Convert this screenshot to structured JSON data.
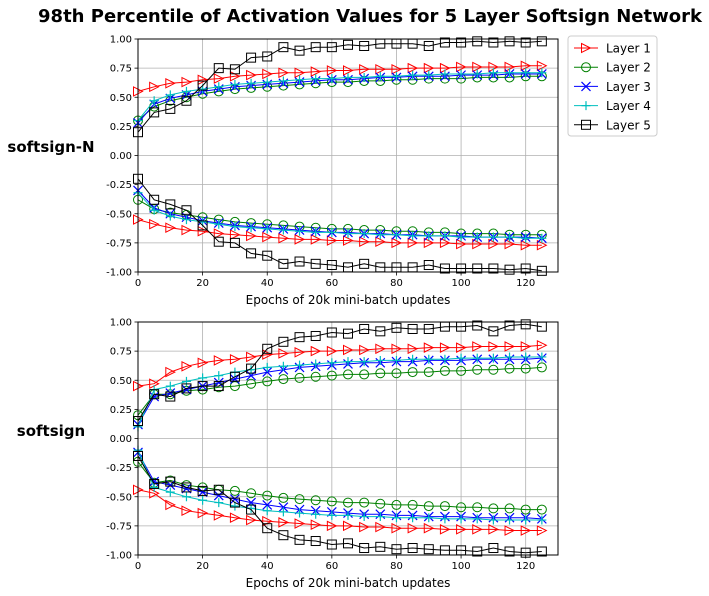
{
  "title": "98th Percentile of Activation Values for 5 Layer Softsign Network",
  "legend": {
    "placement": "outside-top-right",
    "entries": [
      {
        "label": "Layer 1",
        "color": "#ff0000",
        "marker": "triangle-right"
      },
      {
        "label": "Layer 2",
        "color": "#008000",
        "marker": "circle"
      },
      {
        "label": "Layer 3",
        "color": "#0000ff",
        "marker": "x"
      },
      {
        "label": "Layer 4",
        "color": "#00bfbf",
        "marker": "plus"
      },
      {
        "label": "Layer 5",
        "color": "#000000",
        "marker": "square"
      }
    ]
  },
  "chart_data": [
    {
      "type": "line",
      "row_label": "softsign-N",
      "xlabel": "Epochs of 20k mini-batch updates",
      "ylabel": "",
      "xlim": [
        0,
        130
      ],
      "ylim": [
        -1.0,
        1.0
      ],
      "xticks": [
        "0",
        "20",
        "40",
        "60",
        "80",
        "100",
        "120"
      ],
      "yticks": [
        "-1.00",
        "-0.75",
        "-0.50",
        "-0.25",
        "0.00",
        "0.25",
        "0.50",
        "0.75",
        "1.00"
      ],
      "grid": true,
      "x": [
        0,
        5,
        10,
        15,
        20,
        25,
        30,
        35,
        40,
        45,
        50,
        55,
        60,
        65,
        70,
        75,
        80,
        85,
        90,
        95,
        100,
        105,
        110,
        115,
        120,
        125
      ],
      "series": [
        {
          "name": "Layer 1",
          "group": "upper",
          "values": [
            0.55,
            0.59,
            0.62,
            0.63,
            0.65,
            0.66,
            0.68,
            0.69,
            0.7,
            0.71,
            0.71,
            0.72,
            0.73,
            0.73,
            0.74,
            0.74,
            0.74,
            0.75,
            0.75,
            0.75,
            0.76,
            0.76,
            0.76,
            0.76,
            0.77,
            0.77
          ]
        },
        {
          "name": "Layer 2",
          "group": "upper",
          "values": [
            0.3,
            0.42,
            0.47,
            0.5,
            0.53,
            0.55,
            0.57,
            0.58,
            0.59,
            0.6,
            0.61,
            0.62,
            0.63,
            0.63,
            0.64,
            0.64,
            0.65,
            0.65,
            0.66,
            0.66,
            0.66,
            0.67,
            0.67,
            0.67,
            0.68,
            0.68
          ]
        },
        {
          "name": "Layer 3",
          "group": "upper",
          "values": [
            0.28,
            0.44,
            0.49,
            0.52,
            0.55,
            0.57,
            0.59,
            0.6,
            0.61,
            0.62,
            0.63,
            0.64,
            0.65,
            0.65,
            0.66,
            0.67,
            0.67,
            0.68,
            0.68,
            0.68,
            0.69,
            0.69,
            0.69,
            0.7,
            0.7,
            0.7
          ]
        },
        {
          "name": "Layer 4",
          "group": "upper",
          "values": [
            0.3,
            0.47,
            0.52,
            0.55,
            0.57,
            0.59,
            0.61,
            0.62,
            0.63,
            0.64,
            0.65,
            0.66,
            0.66,
            0.67,
            0.67,
            0.68,
            0.68,
            0.69,
            0.69,
            0.7,
            0.7,
            0.7,
            0.71,
            0.71,
            0.71,
            0.71
          ]
        },
        {
          "name": "Layer 5",
          "group": "upper",
          "values": [
            0.2,
            0.37,
            0.4,
            0.47,
            0.6,
            0.75,
            0.74,
            0.84,
            0.85,
            0.93,
            0.9,
            0.93,
            0.93,
            0.95,
            0.94,
            0.96,
            0.96,
            0.96,
            0.94,
            0.97,
            0.97,
            0.98,
            0.97,
            0.98,
            0.97,
            0.98
          ]
        },
        {
          "name": "Layer 1",
          "group": "lower",
          "values": [
            -0.55,
            -0.59,
            -0.62,
            -0.64,
            -0.65,
            -0.67,
            -0.68,
            -0.69,
            -0.7,
            -0.71,
            -0.72,
            -0.72,
            -0.73,
            -0.73,
            -0.74,
            -0.74,
            -0.75,
            -0.75,
            -0.75,
            -0.75,
            -0.76,
            -0.76,
            -0.76,
            -0.76,
            -0.77,
            -0.77
          ]
        },
        {
          "name": "Layer 2",
          "group": "lower",
          "values": [
            -0.38,
            -0.46,
            -0.49,
            -0.51,
            -0.53,
            -0.55,
            -0.57,
            -0.58,
            -0.59,
            -0.6,
            -0.61,
            -0.62,
            -0.63,
            -0.63,
            -0.64,
            -0.64,
            -0.65,
            -0.65,
            -0.66,
            -0.66,
            -0.67,
            -0.67,
            -0.67,
            -0.68,
            -0.68,
            -0.68
          ]
        },
        {
          "name": "Layer 3",
          "group": "lower",
          "values": [
            -0.3,
            -0.45,
            -0.5,
            -0.53,
            -0.56,
            -0.58,
            -0.6,
            -0.61,
            -0.62,
            -0.63,
            -0.64,
            -0.65,
            -0.66,
            -0.66,
            -0.67,
            -0.67,
            -0.68,
            -0.68,
            -0.69,
            -0.69,
            -0.69,
            -0.7,
            -0.7,
            -0.7,
            -0.7,
            -0.71
          ]
        },
        {
          "name": "Layer 4",
          "group": "lower",
          "values": [
            -0.32,
            -0.47,
            -0.52,
            -0.55,
            -0.57,
            -0.59,
            -0.61,
            -0.62,
            -0.63,
            -0.64,
            -0.65,
            -0.66,
            -0.66,
            -0.67,
            -0.67,
            -0.68,
            -0.68,
            -0.69,
            -0.69,
            -0.69,
            -0.7,
            -0.7,
            -0.7,
            -0.7,
            -0.71,
            -0.71
          ]
        },
        {
          "name": "Layer 5",
          "group": "lower",
          "values": [
            -0.2,
            -0.38,
            -0.42,
            -0.47,
            -0.6,
            -0.74,
            -0.75,
            -0.84,
            -0.86,
            -0.93,
            -0.91,
            -0.93,
            -0.94,
            -0.96,
            -0.93,
            -0.96,
            -0.96,
            -0.96,
            -0.94,
            -0.97,
            -0.97,
            -0.97,
            -0.97,
            -0.98,
            -0.97,
            -0.99
          ]
        }
      ]
    },
    {
      "type": "line",
      "row_label": "softsign",
      "xlabel": "Epochs of 20k mini-batch updates",
      "ylabel": "",
      "xlim": [
        0,
        130
      ],
      "ylim": [
        -1.0,
        1.0
      ],
      "xticks": [
        "0",
        "20",
        "40",
        "60",
        "80",
        "100",
        "120"
      ],
      "yticks": [
        "-1.00",
        "-0.75",
        "-0.50",
        "-0.25",
        "0.00",
        "0.25",
        "0.50",
        "0.75",
        "1.00"
      ],
      "grid": true,
      "x": [
        0,
        5,
        10,
        15,
        20,
        25,
        30,
        35,
        40,
        45,
        50,
        55,
        60,
        65,
        70,
        75,
        80,
        85,
        90,
        95,
        100,
        105,
        110,
        115,
        120,
        125
      ],
      "series": [
        {
          "name": "Layer 1",
          "group": "upper",
          "values": [
            0.45,
            0.47,
            0.57,
            0.62,
            0.65,
            0.67,
            0.68,
            0.7,
            0.72,
            0.73,
            0.74,
            0.75,
            0.75,
            0.76,
            0.76,
            0.77,
            0.77,
            0.77,
            0.78,
            0.78,
            0.78,
            0.79,
            0.79,
            0.79,
            0.79,
            0.8
          ]
        },
        {
          "name": "Layer 2",
          "group": "upper",
          "values": [
            0.2,
            0.38,
            0.38,
            0.41,
            0.42,
            0.44,
            0.45,
            0.47,
            0.49,
            0.51,
            0.52,
            0.53,
            0.54,
            0.55,
            0.55,
            0.56,
            0.56,
            0.57,
            0.57,
            0.58,
            0.58,
            0.59,
            0.59,
            0.6,
            0.6,
            0.61
          ]
        },
        {
          "name": "Layer 3",
          "group": "upper",
          "values": [
            0.12,
            0.36,
            0.39,
            0.42,
            0.45,
            0.48,
            0.51,
            0.54,
            0.57,
            0.59,
            0.61,
            0.62,
            0.63,
            0.64,
            0.65,
            0.65,
            0.66,
            0.66,
            0.67,
            0.67,
            0.67,
            0.68,
            0.68,
            0.68,
            0.68,
            0.69
          ]
        },
        {
          "name": "Layer 4",
          "group": "upper",
          "values": [
            0.1,
            0.42,
            0.45,
            0.49,
            0.52,
            0.54,
            0.57,
            0.59,
            0.61,
            0.62,
            0.63,
            0.64,
            0.65,
            0.66,
            0.66,
            0.67,
            0.67,
            0.68,
            0.68,
            0.68,
            0.69,
            0.69,
            0.69,
            0.7,
            0.7,
            0.7
          ]
        },
        {
          "name": "Layer 5",
          "group": "upper",
          "values": [
            0.15,
            0.38,
            0.36,
            0.43,
            0.45,
            0.45,
            0.53,
            0.6,
            0.77,
            0.83,
            0.87,
            0.88,
            0.91,
            0.9,
            0.94,
            0.92,
            0.95,
            0.94,
            0.94,
            0.96,
            0.96,
            0.97,
            0.92,
            0.97,
            0.98,
            0.96
          ]
        },
        {
          "name": "Layer 1",
          "group": "lower",
          "values": [
            -0.44,
            -0.47,
            -0.57,
            -0.62,
            -0.64,
            -0.66,
            -0.68,
            -0.7,
            -0.71,
            -0.72,
            -0.73,
            -0.74,
            -0.75,
            -0.75,
            -0.76,
            -0.76,
            -0.77,
            -0.77,
            -0.77,
            -0.78,
            -0.78,
            -0.78,
            -0.78,
            -0.79,
            -0.79,
            -0.79
          ]
        },
        {
          "name": "Layer 2",
          "group": "lower",
          "values": [
            -0.2,
            -0.38,
            -0.36,
            -0.4,
            -0.42,
            -0.44,
            -0.45,
            -0.47,
            -0.49,
            -0.51,
            -0.52,
            -0.53,
            -0.54,
            -0.55,
            -0.55,
            -0.56,
            -0.57,
            -0.57,
            -0.58,
            -0.58,
            -0.59,
            -0.59,
            -0.6,
            -0.6,
            -0.61,
            -0.61
          ]
        },
        {
          "name": "Layer 3",
          "group": "lower",
          "values": [
            -0.12,
            -0.37,
            -0.4,
            -0.43,
            -0.46,
            -0.49,
            -0.52,
            -0.55,
            -0.57,
            -0.59,
            -0.61,
            -0.62,
            -0.63,
            -0.64,
            -0.65,
            -0.65,
            -0.66,
            -0.66,
            -0.67,
            -0.67,
            -0.67,
            -0.68,
            -0.68,
            -0.68,
            -0.68,
            -0.69
          ]
        },
        {
          "name": "Layer 4",
          "group": "lower",
          "values": [
            -0.1,
            -0.42,
            -0.46,
            -0.5,
            -0.53,
            -0.55,
            -0.58,
            -0.6,
            -0.62,
            -0.63,
            -0.64,
            -0.65,
            -0.66,
            -0.66,
            -0.67,
            -0.67,
            -0.68,
            -0.68,
            -0.68,
            -0.69,
            -0.69,
            -0.69,
            -0.7,
            -0.7,
            -0.7,
            -0.7
          ]
        },
        {
          "name": "Layer 5",
          "group": "lower",
          "values": [
            -0.15,
            -0.39,
            -0.37,
            -0.42,
            -0.45,
            -0.44,
            -0.55,
            -0.61,
            -0.77,
            -0.83,
            -0.87,
            -0.88,
            -0.91,
            -0.9,
            -0.94,
            -0.93,
            -0.95,
            -0.94,
            -0.95,
            -0.96,
            -0.96,
            -0.97,
            -0.94,
            -0.97,
            -0.98,
            -0.97
          ]
        }
      ]
    }
  ]
}
